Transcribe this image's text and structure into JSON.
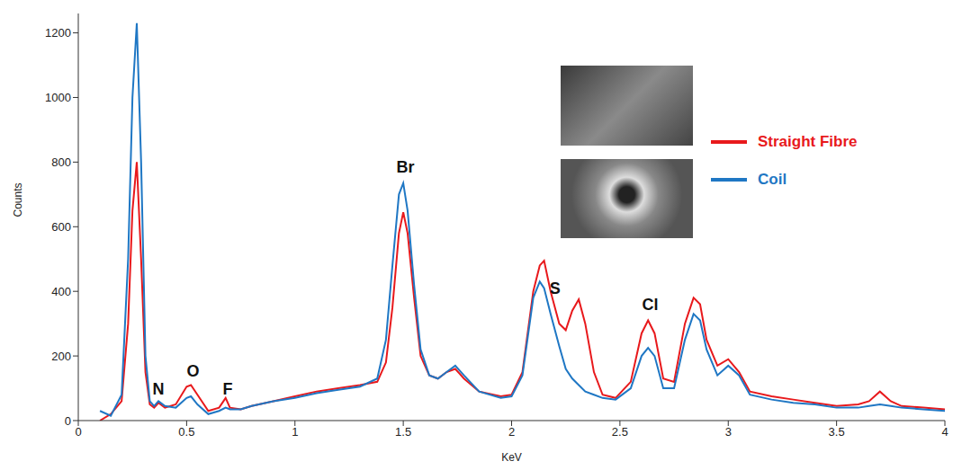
{
  "chart_data": {
    "type": "line",
    "x_label": "KeV",
    "y_label": "Counts",
    "xlim": [
      0,
      4
    ],
    "xticks": [
      0,
      0.5,
      1,
      1.5,
      2,
      2.5,
      3,
      3.5,
      4
    ],
    "ylim": [
      0,
      1260
    ],
    "yticks": [
      0,
      200,
      400,
      600,
      800,
      1000,
      1200
    ],
    "grid": false,
    "legend": "right",
    "x": [
      0.1,
      0.15,
      0.2,
      0.23,
      0.25,
      0.27,
      0.29,
      0.31,
      0.33,
      0.35,
      0.37,
      0.4,
      0.45,
      0.5,
      0.52,
      0.55,
      0.6,
      0.65,
      0.68,
      0.7,
      0.75,
      0.8,
      0.9,
      1.0,
      1.1,
      1.2,
      1.3,
      1.38,
      1.42,
      1.45,
      1.48,
      1.5,
      1.52,
      1.55,
      1.58,
      1.62,
      1.66,
      1.7,
      1.74,
      1.78,
      1.85,
      1.95,
      2.0,
      2.05,
      2.1,
      2.13,
      2.15,
      2.18,
      2.22,
      2.25,
      2.28,
      2.31,
      2.34,
      2.38,
      2.42,
      2.48,
      2.55,
      2.6,
      2.63,
      2.66,
      2.7,
      2.75,
      2.8,
      2.84,
      2.87,
      2.9,
      2.95,
      3.0,
      3.05,
      3.1,
      3.2,
      3.3,
      3.4,
      3.5,
      3.6,
      3.65,
      3.7,
      3.75,
      3.8,
      3.9,
      4.0
    ],
    "series": [
      {
        "name": "Straight Fibre",
        "color": "#e8191c",
        "values": [
          0,
          20,
          60,
          300,
          650,
          800,
          500,
          150,
          50,
          40,
          55,
          40,
          50,
          105,
          110,
          80,
          30,
          40,
          70,
          40,
          35,
          45,
          60,
          75,
          90,
          100,
          110,
          120,
          180,
          350,
          580,
          645,
          580,
          380,
          200,
          140,
          130,
          150,
          160,
          130,
          90,
          75,
          80,
          150,
          400,
          480,
          495,
          400,
          300,
          280,
          340,
          375,
          300,
          150,
          80,
          70,
          120,
          270,
          310,
          270,
          130,
          120,
          300,
          380,
          360,
          250,
          170,
          190,
          150,
          90,
          75,
          65,
          55,
          45,
          50,
          60,
          90,
          60,
          45,
          40,
          35
        ]
      },
      {
        "name": "Coil",
        "color": "#1f77c4",
        "values": [
          30,
          15,
          80,
          500,
          1000,
          1230,
          800,
          200,
          60,
          45,
          60,
          45,
          40,
          70,
          75,
          50,
          20,
          30,
          40,
          35,
          35,
          45,
          60,
          70,
          85,
          95,
          105,
          130,
          250,
          480,
          700,
          735,
          650,
          420,
          220,
          140,
          130,
          150,
          170,
          140,
          90,
          70,
          75,
          140,
          380,
          430,
          410,
          330,
          230,
          160,
          130,
          110,
          90,
          80,
          70,
          65,
          100,
          200,
          225,
          200,
          100,
          100,
          250,
          330,
          310,
          220,
          140,
          170,
          140,
          80,
          65,
          55,
          50,
          40,
          40,
          45,
          50,
          45,
          40,
          35,
          30
        ]
      }
    ],
    "annotations": [
      {
        "text": "N",
        "x": 0.37,
        "y": 97
      },
      {
        "text": "O",
        "x": 0.53,
        "y": 153
      },
      {
        "text": "F",
        "x": 0.69,
        "y": 97
      },
      {
        "text": "Br",
        "x": 1.51,
        "y": 785
      },
      {
        "text": "S",
        "x": 2.2,
        "y": 410
      },
      {
        "text": "Cl",
        "x": 2.64,
        "y": 360
      }
    ]
  }
}
